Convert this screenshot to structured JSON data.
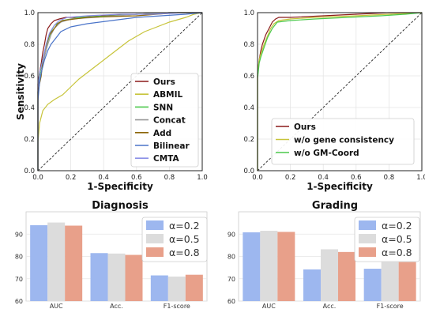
{
  "chart_data": [
    {
      "type": "line",
      "xlabel": "1-Specificity",
      "ylabel": "Sensitivity",
      "xlim": [
        0,
        1.0
      ],
      "ylim": [
        0,
        1.0
      ],
      "xticks": [
        "0.0",
        "0.2",
        "0.4",
        "0.6",
        "0.8",
        "1.0"
      ],
      "yticks": [
        "0.0",
        "0.2",
        "0.4",
        "0.6",
        "0.8",
        "1.0"
      ],
      "grid": true,
      "legend_position": "lower-right",
      "series": [
        {
          "name": "Ours",
          "color": "#8b1a1a",
          "x": [
            0,
            0.0,
            0.01,
            0.02,
            0.03,
            0.04,
            0.05,
            0.06,
            0.08,
            0.1,
            0.13,
            0.17,
            0.25,
            0.4,
            0.6,
            0.8,
            1.0
          ],
          "y": [
            0,
            0.55,
            0.62,
            0.68,
            0.75,
            0.8,
            0.86,
            0.9,
            0.93,
            0.95,
            0.96,
            0.97,
            0.97,
            0.98,
            0.99,
            1.0,
            1.0
          ]
        },
        {
          "name": "ABMIL",
          "color": "#c7c43a",
          "x": [
            0,
            0.0,
            0.01,
            0.03,
            0.06,
            0.1,
            0.15,
            0.2,
            0.25,
            0.3,
            0.35,
            0.4,
            0.45,
            0.5,
            0.55,
            0.6,
            0.65,
            0.7,
            0.8,
            0.9,
            0.95,
            1.0
          ],
          "y": [
            0,
            0.18,
            0.3,
            0.38,
            0.42,
            0.45,
            0.48,
            0.53,
            0.58,
            0.62,
            0.66,
            0.7,
            0.74,
            0.78,
            0.82,
            0.85,
            0.88,
            0.9,
            0.94,
            0.97,
            0.99,
            1.0
          ]
        },
        {
          "name": "SNN",
          "color": "#4cc94c",
          "x": [
            0,
            0.0,
            0.01,
            0.02,
            0.04,
            0.06,
            0.08,
            0.1,
            0.15,
            0.25,
            0.45,
            0.6,
            0.8,
            1.0
          ],
          "y": [
            0,
            0.5,
            0.6,
            0.66,
            0.75,
            0.82,
            0.88,
            0.92,
            0.95,
            0.97,
            0.98,
            0.99,
            1.0,
            1.0
          ]
        },
        {
          "name": "Concat",
          "color": "#9a9a9a",
          "x": [
            0,
            0.0,
            0.02,
            0.04,
            0.06,
            0.08,
            0.1,
            0.14,
            0.2,
            0.35,
            0.6,
            0.8,
            1.0
          ],
          "y": [
            0,
            0.5,
            0.62,
            0.72,
            0.8,
            0.86,
            0.9,
            0.94,
            0.96,
            0.97,
            0.99,
            1.0,
            1.0
          ]
        },
        {
          "name": "Add",
          "color": "#8b6508",
          "x": [
            0,
            0.0,
            0.02,
            0.03,
            0.05,
            0.07,
            0.1,
            0.12,
            0.15,
            0.3,
            0.6,
            0.85,
            1.0
          ],
          "y": [
            0,
            0.5,
            0.6,
            0.7,
            0.79,
            0.86,
            0.9,
            0.93,
            0.95,
            0.97,
            0.98,
            1.0,
            1.0
          ]
        },
        {
          "name": "Bilinear",
          "color": "#4a74c9",
          "x": [
            0,
            0.0,
            0.01,
            0.02,
            0.04,
            0.06,
            0.08,
            0.11,
            0.14,
            0.2,
            0.3,
            0.45,
            0.6,
            0.75,
            0.9,
            1.0
          ],
          "y": [
            0,
            0.44,
            0.56,
            0.62,
            0.7,
            0.76,
            0.8,
            0.84,
            0.88,
            0.91,
            0.93,
            0.95,
            0.97,
            0.98,
            0.99,
            1.0
          ]
        },
        {
          "name": "CMTA",
          "color": "#8a8fe6",
          "x": [
            0,
            0.0,
            0.01,
            0.03,
            0.05,
            0.07,
            0.1,
            0.13,
            0.18,
            0.3,
            0.5,
            0.7,
            0.9,
            1.0
          ],
          "y": [
            0,
            0.52,
            0.62,
            0.7,
            0.8,
            0.87,
            0.92,
            0.95,
            0.97,
            0.98,
            0.99,
            0.99,
            1.0,
            1.0
          ]
        }
      ]
    },
    {
      "type": "line",
      "xlabel": "1-Specificity",
      "ylabel": "",
      "xlim": [
        0,
        1.0
      ],
      "ylim": [
        0,
        1.0
      ],
      "xticks": [
        "0.0",
        "0.2",
        "0.4",
        "0.6",
        "0.8",
        "1.0"
      ],
      "yticks": [
        "0.0",
        "0.2",
        "0.4",
        "0.6",
        "0.8",
        "1.0"
      ],
      "grid": true,
      "legend_position": "lower-right",
      "series": [
        {
          "name": "Ours",
          "color": "#8b1a1a",
          "x": [
            0,
            0.0,
            0.01,
            0.02,
            0.03,
            0.05,
            0.07,
            0.09,
            0.11,
            0.13,
            0.2,
            0.4,
            0.6,
            0.8,
            1.0
          ],
          "y": [
            0,
            0.6,
            0.7,
            0.76,
            0.8,
            0.86,
            0.9,
            0.94,
            0.96,
            0.97,
            0.97,
            0.98,
            0.99,
            1.0,
            1.0
          ]
        },
        {
          "name": "w/o gene consistency",
          "color": "#c7c43a",
          "x": [
            0,
            0.0,
            0.01,
            0.02,
            0.04,
            0.06,
            0.08,
            0.1,
            0.13,
            0.2,
            0.35,
            0.6,
            0.8,
            1.0
          ],
          "y": [
            0,
            0.62,
            0.7,
            0.74,
            0.8,
            0.85,
            0.9,
            0.93,
            0.95,
            0.96,
            0.97,
            0.98,
            0.99,
            1.0
          ]
        },
        {
          "name": "w/o GM-Coord",
          "color": "#4cc94c",
          "x": [
            0,
            0.0,
            0.01,
            0.02,
            0.04,
            0.06,
            0.09,
            0.12,
            0.2,
            0.35,
            0.55,
            0.75,
            0.9,
            1.0
          ],
          "y": [
            0,
            0.58,
            0.68,
            0.72,
            0.78,
            0.84,
            0.9,
            0.94,
            0.95,
            0.96,
            0.97,
            0.98,
            0.99,
            1.0
          ]
        }
      ]
    },
    {
      "type": "bar",
      "title": "Diagnosis",
      "categories": [
        "AUC",
        "Acc.",
        "F1-score"
      ],
      "ylim": [
        60,
        100
      ],
      "yticks": [
        "60",
        "70",
        "80",
        "90"
      ],
      "grid": true,
      "legend_position": "top-right",
      "series": [
        {
          "name": "α=0.2",
          "color": "#9db7ef",
          "values": [
            94.0,
            81.5,
            71.5
          ]
        },
        {
          "name": "α=0.5",
          "color": "#dcdcdc",
          "values": [
            95.2,
            81.3,
            71.0
          ]
        },
        {
          "name": "α=0.8",
          "color": "#e8a08a",
          "values": [
            93.8,
            80.7,
            71.8
          ]
        }
      ]
    },
    {
      "type": "bar",
      "title": "Grading",
      "categories": [
        "AUC",
        "Acc.",
        "F1-score"
      ],
      "ylim": [
        60,
        100
      ],
      "yticks": [
        "60",
        "70",
        "80",
        "90"
      ],
      "grid": true,
      "legend_position": "top-right",
      "series": [
        {
          "name": "α=0.2",
          "color": "#9db7ef",
          "values": [
            90.8,
            74.2,
            74.5
          ]
        },
        {
          "name": "α=0.5",
          "color": "#dcdcdc",
          "values": [
            91.5,
            83.2,
            77.5
          ]
        },
        {
          "name": "α=0.8",
          "color": "#e8a08a",
          "values": [
            91.0,
            82.0,
            77.5
          ]
        }
      ]
    }
  ]
}
